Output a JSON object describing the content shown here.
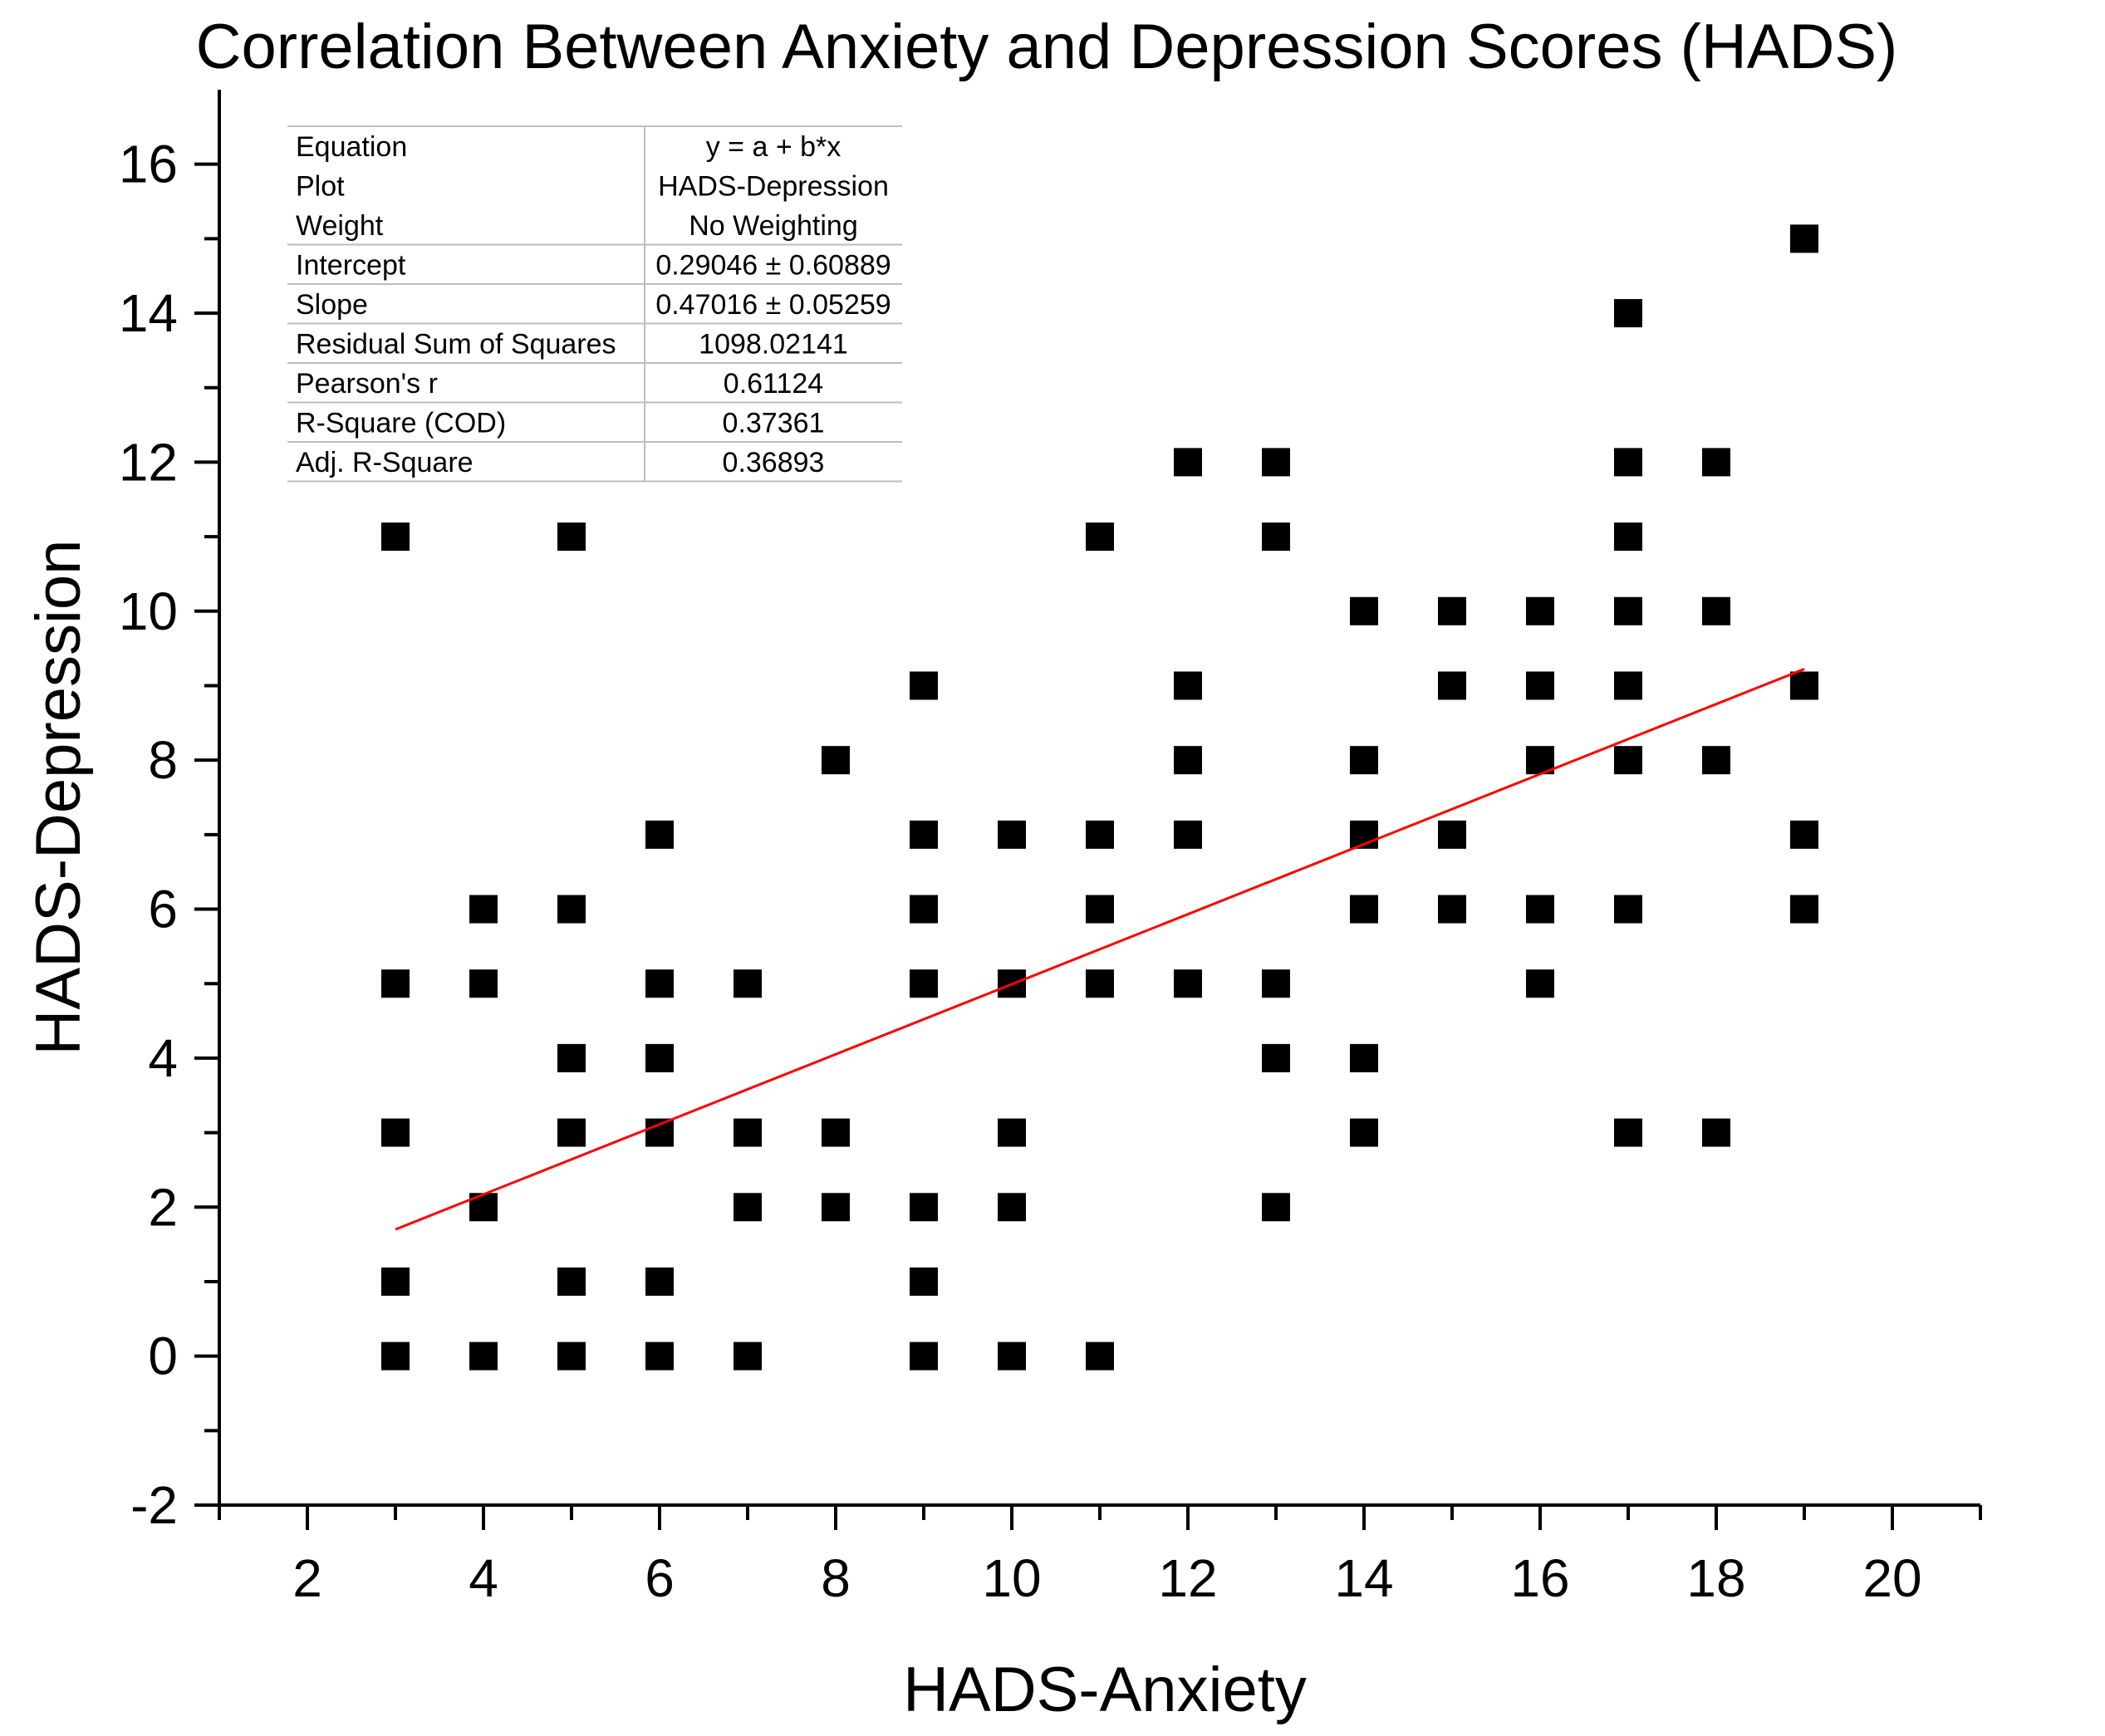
{
  "chart_data": {
    "type": "scatter",
    "title": "Correlation Between Anxiety and Depression Scores (HADS)",
    "xlabel": "HADS-Anxiety",
    "ylabel": "HADS-Depression",
    "xlim": [
      1,
      21
    ],
    "ylim": [
      -2,
      17
    ],
    "xticks": [
      2,
      4,
      6,
      8,
      10,
      12,
      14,
      16,
      18,
      20
    ],
    "yticks": [
      -2,
      0,
      2,
      4,
      6,
      8,
      10,
      12,
      14,
      16
    ],
    "series": [
      {
        "name": "HADS-Depression",
        "marker": "square",
        "color": "#000000",
        "points": [
          [
            3,
            11
          ],
          [
            3,
            5
          ],
          [
            3,
            3
          ],
          [
            3,
            1
          ],
          [
            3,
            0
          ],
          [
            4,
            6
          ],
          [
            4,
            5
          ],
          [
            4,
            2
          ],
          [
            4,
            0
          ],
          [
            5,
            11
          ],
          [
            5,
            6
          ],
          [
            5,
            4
          ],
          [
            5,
            3
          ],
          [
            5,
            1
          ],
          [
            5,
            0
          ],
          [
            6,
            7
          ],
          [
            6,
            5
          ],
          [
            6,
            4
          ],
          [
            6,
            3
          ],
          [
            6,
            1
          ],
          [
            6,
            0
          ],
          [
            7,
            5
          ],
          [
            7,
            3
          ],
          [
            7,
            2
          ],
          [
            7,
            0
          ],
          [
            8,
            8
          ],
          [
            8,
            3
          ],
          [
            8,
            2
          ],
          [
            9,
            9
          ],
          [
            9,
            7
          ],
          [
            9,
            6
          ],
          [
            9,
            5
          ],
          [
            9,
            2
          ],
          [
            9,
            1
          ],
          [
            9,
            0
          ],
          [
            10,
            7
          ],
          [
            10,
            5
          ],
          [
            10,
            3
          ],
          [
            10,
            2
          ],
          [
            10,
            0
          ],
          [
            11,
            11
          ],
          [
            11,
            7
          ],
          [
            11,
            6
          ],
          [
            11,
            5
          ],
          [
            11,
            0
          ],
          [
            12,
            12
          ],
          [
            12,
            9
          ],
          [
            12,
            8
          ],
          [
            12,
            7
          ],
          [
            12,
            5
          ],
          [
            13,
            12
          ],
          [
            13,
            11
          ],
          [
            13,
            5
          ],
          [
            13,
            4
          ],
          [
            13,
            2
          ],
          [
            14,
            10
          ],
          [
            14,
            8
          ],
          [
            14,
            7
          ],
          [
            14,
            6
          ],
          [
            14,
            4
          ],
          [
            14,
            3
          ],
          [
            15,
            10
          ],
          [
            15,
            9
          ],
          [
            15,
            7
          ],
          [
            15,
            6
          ],
          [
            16,
            10
          ],
          [
            16,
            9
          ],
          [
            16,
            8
          ],
          [
            16,
            6
          ],
          [
            16,
            5
          ],
          [
            17,
            14
          ],
          [
            17,
            12
          ],
          [
            17,
            11
          ],
          [
            17,
            10
          ],
          [
            17,
            9
          ],
          [
            17,
            8
          ],
          [
            17,
            6
          ],
          [
            17,
            3
          ],
          [
            18,
            12
          ],
          [
            18,
            10
          ],
          [
            18,
            8
          ],
          [
            18,
            3
          ],
          [
            19,
            15
          ],
          [
            19,
            9
          ],
          [
            19,
            7
          ],
          [
            19,
            6
          ]
        ]
      }
    ],
    "fit_line": {
      "type": "linear",
      "color": "#ff0000",
      "intercept": 0.29046,
      "slope": 0.47016,
      "x_range": [
        3,
        19
      ]
    },
    "stats_table": [
      [
        "Equation",
        "y = a + b*x"
      ],
      [
        "Plot",
        "HADS-Depression"
      ],
      [
        "Weight",
        "No Weighting"
      ],
      [
        "Intercept",
        "0.29046 ± 0.60889"
      ],
      [
        "Slope",
        "0.47016 ± 0.05259"
      ],
      [
        "Residual Sum of Squares",
        "1098.02141"
      ],
      [
        "Pearson's r",
        "0.61124"
      ],
      [
        "R-Square (COD)",
        "0.37361"
      ],
      [
        "Adj. R-Square",
        "0.36893"
      ]
    ]
  }
}
